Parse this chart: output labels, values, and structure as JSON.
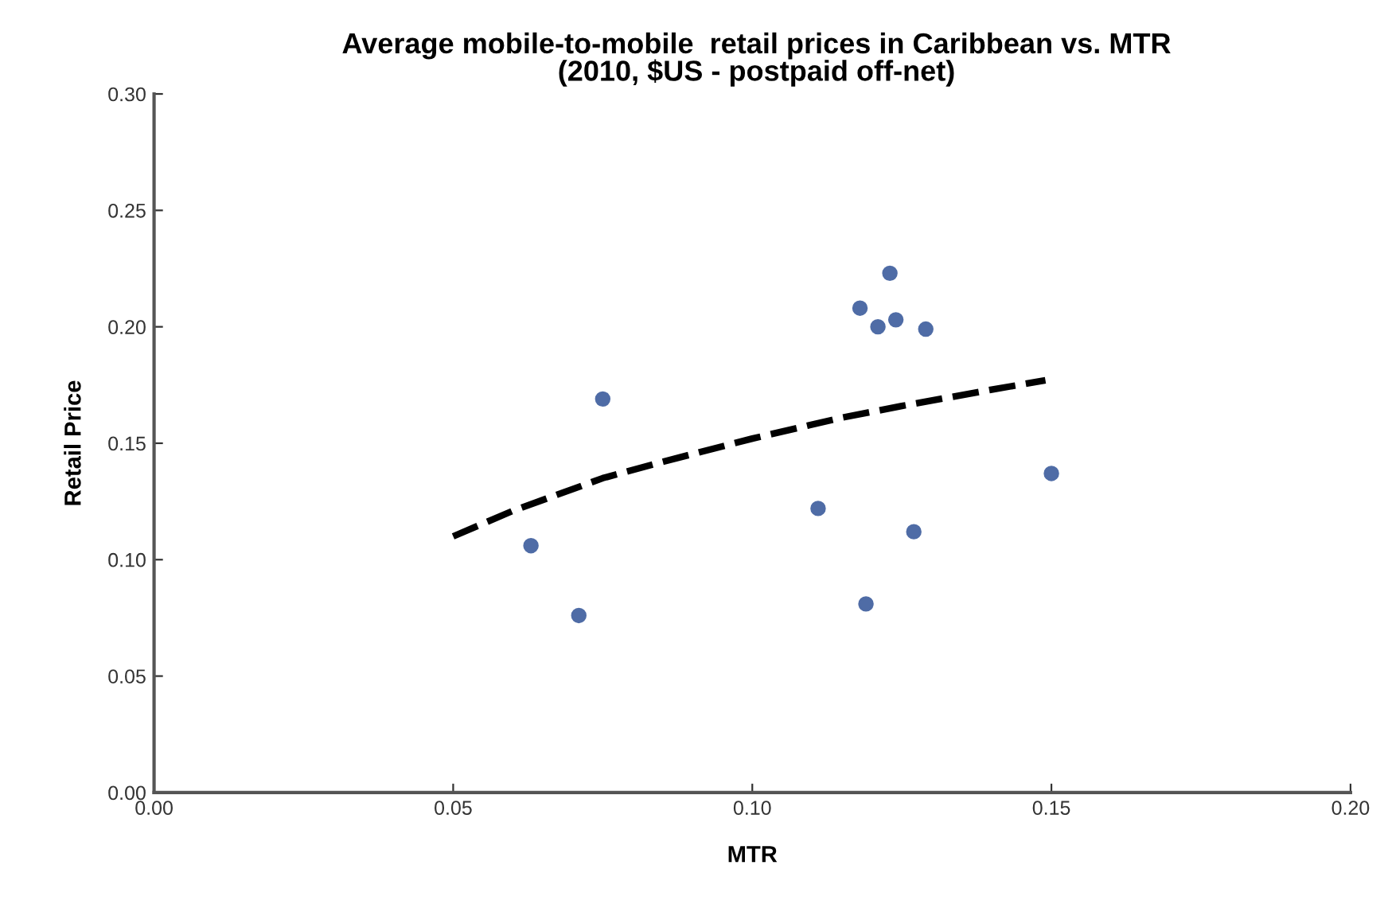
{
  "chart_data": {
    "type": "scatter",
    "title": "Average mobile-to-mobile  retail prices in Caribbean vs. MTR\n(2010, $US - postpaid off-net)",
    "xlabel": "MTR",
    "ylabel": "Retail Price",
    "xlim": [
      0,
      0.2
    ],
    "ylim": [
      0,
      0.3
    ],
    "xticks": [
      {
        "value": 0,
        "label": "0.00"
      },
      {
        "value": 0.05,
        "label": "0.05"
      },
      {
        "value": 0.1,
        "label": "0.10"
      },
      {
        "value": 0.15,
        "label": "0.15"
      },
      {
        "value": 0.2,
        "label": "0.20"
      }
    ],
    "yticks": [
      {
        "value": 0,
        "label": "0.00"
      },
      {
        "value": 0.05,
        "label": "0.05"
      },
      {
        "value": 0.1,
        "label": "0.10"
      },
      {
        "value": 0.15,
        "label": "0.15"
      },
      {
        "value": 0.2,
        "label": "0.20"
      },
      {
        "value": 0.25,
        "label": "0.25"
      },
      {
        "value": 0.3,
        "label": "0.30"
      }
    ],
    "grid": false,
    "legend": false,
    "series": [
      {
        "color": "#4f6ca6",
        "marker": "circle",
        "x": [
          0.075,
          0.063,
          0.071,
          0.123,
          0.118,
          0.121,
          0.124,
          0.129,
          0.15,
          0.111,
          0.127,
          0.119
        ],
        "values": [
          0.169,
          0.106,
          0.076,
          0.223,
          0.208,
          0.2,
          0.203,
          0.199,
          0.137,
          0.122,
          0.112,
          0.081
        ]
      },
      {
        "type": "line",
        "color": "#000000",
        "line_style": "dashed",
        "marker": "none",
        "x": [
          0.05,
          0.06,
          0.075,
          0.085,
          0.1,
          0.115,
          0.125,
          0.14,
          0.149
        ],
        "values": [
          0.11,
          0.121,
          0.135,
          0.142,
          0.152,
          0.161,
          0.166,
          0.173,
          0.177
        ]
      }
    ]
  }
}
